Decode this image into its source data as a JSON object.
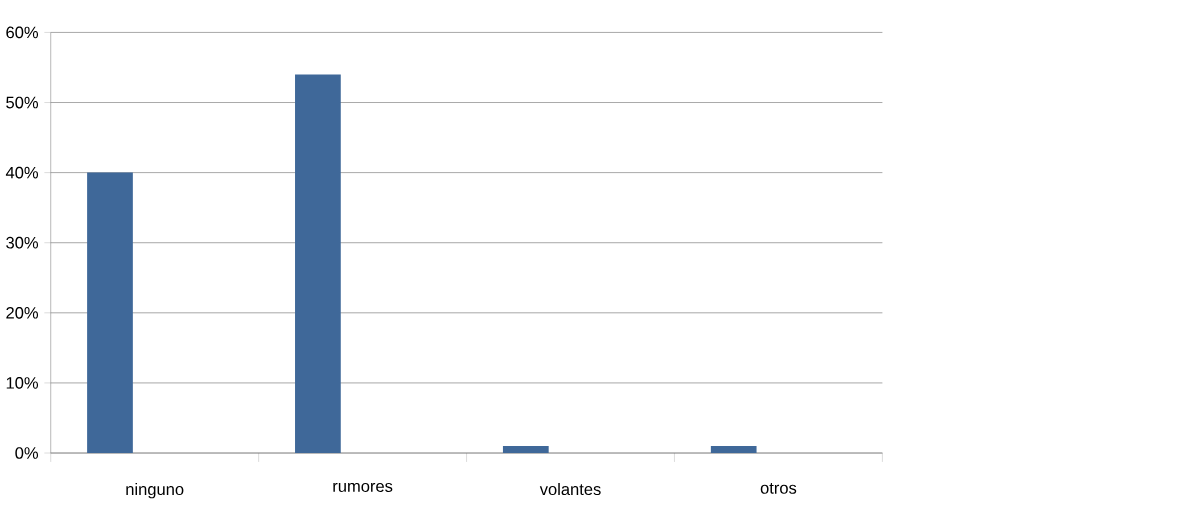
{
  "chart_data": {
    "type": "bar",
    "categories": [
      "ninguno",
      "rumores",
      "volantes",
      "otros"
    ],
    "values": [
      40,
      54,
      1,
      1
    ],
    "color": "#3f6899",
    "ylim": [
      0,
      60
    ],
    "yticks": [
      {
        "value": 0,
        "label": "0%"
      },
      {
        "value": 10,
        "label": "10%"
      },
      {
        "value": 20,
        "label": "20%"
      },
      {
        "value": 30,
        "label": "30%"
      },
      {
        "value": 40,
        "label": "40%"
      },
      {
        "value": 50,
        "label": "50%"
      },
      {
        "value": 60,
        "label": "60%"
      }
    ],
    "grid": "y"
  }
}
